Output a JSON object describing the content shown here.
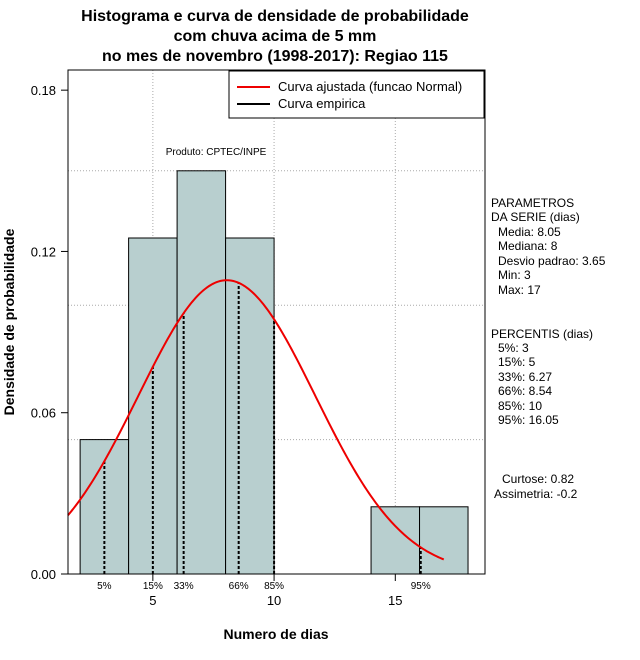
{
  "chart_data": {
    "type": "histogram",
    "title": [
      "Histograma e curva de densidade de probabilidade",
      "com chuva acima de 5 mm",
      "no mes de novembro (1998-2017): Regiao 115"
    ],
    "xlabel": "Numero de dias",
    "ylabel": "Densidade de probabilidade",
    "xlim": [
      1.5,
      18.7
    ],
    "ylim": [
      0,
      0.1875
    ],
    "x_ticks": [
      5,
      10,
      15
    ],
    "y_ticks": [
      0.0,
      0.06,
      0.12,
      0.18
    ],
    "y_tick_labels": [
      "0.00",
      "0.06",
      "0.12",
      "0.18"
    ],
    "grid_x": [
      5,
      10,
      15
    ],
    "grid_y": [
      0.05,
      0.1,
      0.15
    ],
    "bins": [
      {
        "x0": 2,
        "x1": 4,
        "density": 0.05
      },
      {
        "x0": 4,
        "x1": 6,
        "density": 0.125
      },
      {
        "x0": 6,
        "x1": 8,
        "density": 0.15
      },
      {
        "x0": 8,
        "x1": 10,
        "density": 0.125
      },
      {
        "x0": 14,
        "x1": 16,
        "density": 0.025
      },
      {
        "x0": 16,
        "x1": 18,
        "density": 0.025
      }
    ],
    "bar_color": "#b8cfcf",
    "normal_curve": {
      "mean": 8.05,
      "sd": 3.65,
      "x_from": 1.5,
      "x_to": 17.0,
      "color": "#ee0000"
    },
    "percentiles": [
      {
        "label": "5%",
        "value": 3
      },
      {
        "label": "15%",
        "value": 5
      },
      {
        "label": "33%",
        "value": 6.27
      },
      {
        "label": "66%",
        "value": 8.54
      },
      {
        "label": "85%",
        "value": 10
      },
      {
        "label": "95%",
        "value": 16.05
      }
    ],
    "legend": {
      "position": "top-right",
      "entries": [
        {
          "label": "Curva ajustada (funcao Normal)",
          "color": "#ee0000"
        },
        {
          "label": "Curva empirica",
          "color": "#000000"
        }
      ]
    },
    "annotation": "Produto: CPTEC/INPE"
  },
  "side_panel": {
    "params_header": [
      "PARAMETROS",
      "DA SERIE (dias)"
    ],
    "params": [
      "Media: 8.05",
      "Mediana: 8",
      "Desvio padrao: 3.65",
      "Min: 3",
      "Max: 17"
    ],
    "perc_header": "PERCENTIS (dias)",
    "percs": [
      "5%: 3",
      "15%: 5",
      "33%: 6.27",
      "66%: 8.54",
      "85%: 10",
      "95%: 16.05"
    ],
    "stats": [
      "Curtose: 0.82",
      "Assimetria: -0.2"
    ]
  }
}
